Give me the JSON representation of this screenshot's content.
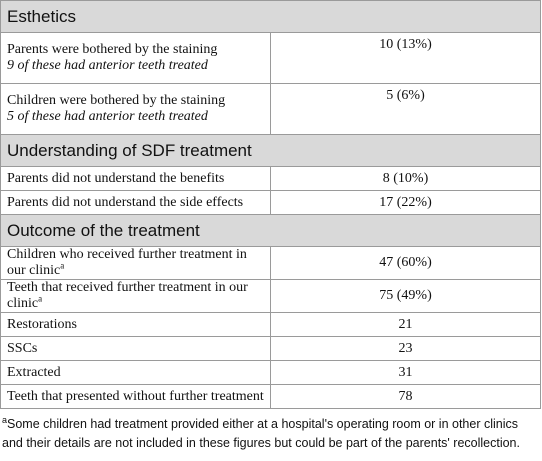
{
  "sections": [
    {
      "title": "Esthetics",
      "rows": [
        {
          "label": "Parents were bothered by the staining",
          "note": "9 of these had anterior teeth treated",
          "value": "10 (13%)"
        },
        {
          "label": "Children were bothered by the staining",
          "note": "5 of these had anterior teeth treated",
          "value": "5 (6%)"
        }
      ]
    },
    {
      "title": "Understanding of SDF treatment",
      "rows": [
        {
          "label": "Parents did not understand the benefits",
          "value": "8 (10%)"
        },
        {
          "label": "Parents did not understand the side effects",
          "value": "17 (22%)"
        }
      ]
    },
    {
      "title": "Outcome of the treatment",
      "rows": [
        {
          "label": "Children who received further treatment in our clinic",
          "sup": "a",
          "value": "47 (60%)"
        },
        {
          "label": "Teeth that received further treatment in our clinic",
          "sup": "a",
          "value": "75 (49%)"
        },
        {
          "label": "Restorations",
          "value": "21"
        },
        {
          "label": "SSCs",
          "value": "23"
        },
        {
          "label": "Extracted",
          "value": "31"
        },
        {
          "label": "Teeth that presented without further treatment",
          "value": "78"
        }
      ]
    }
  ],
  "footnote": {
    "mark": "a",
    "text": "Some children had treatment provided either at a hospital's operating room or in other clinics and their details are not included in these figures but could be part of the parents' recollection."
  }
}
